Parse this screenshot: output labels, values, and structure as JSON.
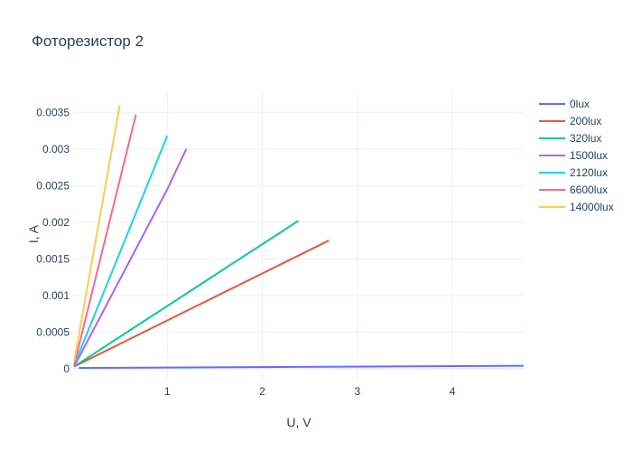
{
  "chart_data": {
    "type": "line",
    "title": "Фоторезистор 2",
    "xlabel": "U, V",
    "ylabel": "I, A",
    "xlim": [
      0,
      4.75
    ],
    "ylim": [
      -0.00015,
      0.0038
    ],
    "x_ticks": [
      1,
      2,
      3,
      4
    ],
    "x_tick_labels": [
      "1",
      "2",
      "3",
      "4"
    ],
    "y_ticks": [
      0,
      0.0005,
      0.001,
      0.0015,
      0.002,
      0.0025,
      0.003,
      0.0035
    ],
    "y_tick_labels": [
      "0",
      "0.0005",
      "0.001",
      "0.0015",
      "0.002",
      "0.0025",
      "0.003",
      "0.0035"
    ],
    "grid": true,
    "legend_position": "top-right",
    "series": [
      {
        "name": "0lux",
        "color": "#636efa",
        "x": [
          0.07,
          4.75
        ],
        "y": [
          1e-05,
          4e-05
        ]
      },
      {
        "name": "200lux",
        "color": "#ef553b",
        "x": [
          0.02,
          2.7
        ],
        "y": [
          3e-05,
          0.00175
        ]
      },
      {
        "name": "320lux",
        "color": "#00cc96",
        "x": [
          0.02,
          2.38
        ],
        "y": [
          3e-05,
          0.00202
        ]
      },
      {
        "name": "1500lux",
        "color": "#ab63fa",
        "x": [
          0.02,
          1.0,
          1.2
        ],
        "y": [
          3e-05,
          0.00245,
          0.003
        ]
      },
      {
        "name": "2120lux",
        "color": "#19d3f3",
        "x": [
          0.02,
          1.0
        ],
        "y": [
          5e-05,
          0.00318
        ]
      },
      {
        "name": "6600lux",
        "color": "#ff6692",
        "x": [
          0.02,
          0.67
        ],
        "y": [
          5e-05,
          0.00347
        ]
      },
      {
        "name": "14000lux",
        "color": "#fecb52",
        "x": [
          0.02,
          0.5
        ],
        "y": [
          0.0001,
          0.0036
        ]
      }
    ]
  }
}
